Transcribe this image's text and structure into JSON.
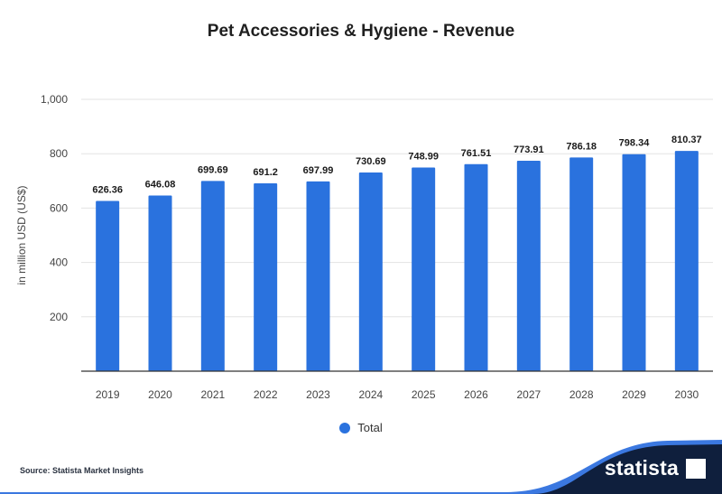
{
  "title": "Pet Accessories & Hygiene - Revenue",
  "legend_label": "Total",
  "source": "Source: Statista Market Insights",
  "brand": "statista",
  "colors": {
    "bar": "#2a72de",
    "grid": "#e3e3e3",
    "axis": "#333333",
    "footer_dark": "#0f1f3d",
    "footer_accent": "#3b78e0"
  },
  "chart_data": {
    "type": "bar",
    "title": "Pet Accessories & Hygiene - Revenue",
    "xlabel": "",
    "ylabel": "in million USD (US$)",
    "ylim": [
      0,
      1000
    ],
    "yticks": [
      200,
      400,
      600,
      800,
      1000
    ],
    "ytick_labels": [
      "200",
      "400",
      "600",
      "800",
      "1,000"
    ],
    "grid": true,
    "legend_placement": "bottom",
    "categories": [
      "2019",
      "2020",
      "2021",
      "2022",
      "2023",
      "2024",
      "2025",
      "2026",
      "2027",
      "2028",
      "2029",
      "2030"
    ],
    "series": [
      {
        "name": "Total",
        "values": [
          626.36,
          646.08,
          699.69,
          691.2,
          697.99,
          730.69,
          748.99,
          761.51,
          773.91,
          786.18,
          798.34,
          810.37
        ],
        "labels": [
          "626.36",
          "646.08",
          "699.69",
          "691.2",
          "697.99",
          "730.69",
          "748.99",
          "761.51",
          "773.91",
          "786.18",
          "798.34",
          "810.37"
        ]
      }
    ]
  }
}
